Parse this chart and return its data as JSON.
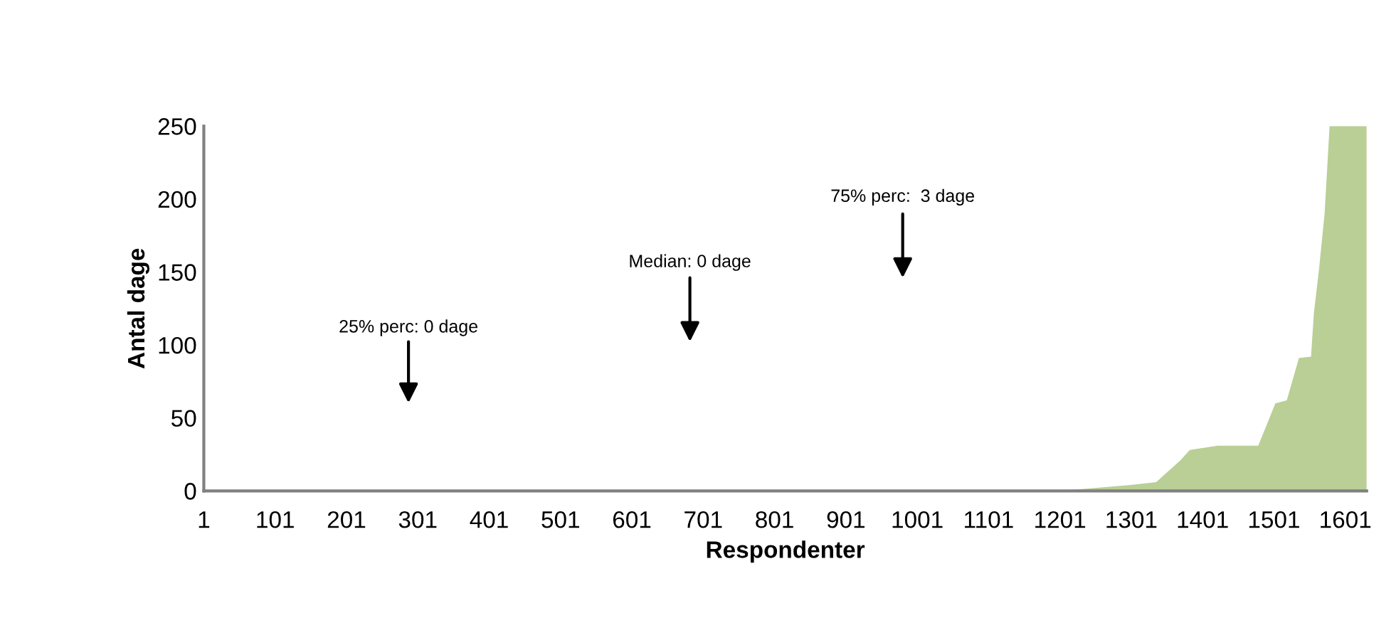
{
  "chart_data": {
    "type": "area",
    "xlabel": "Respondenter",
    "ylabel": "Antal dage",
    "xlim": [
      1,
      1631
    ],
    "xticks": [
      1,
      101,
      201,
      301,
      401,
      501,
      601,
      701,
      801,
      901,
      1001,
      1101,
      1201,
      1301,
      1401,
      1501,
      1601
    ],
    "ylim": [
      0,
      250
    ],
    "yticks": [
      0,
      50,
      100,
      150,
      200,
      250
    ],
    "grid": false,
    "legend": false,
    "series": [
      {
        "color": "#b9cf96",
        "x": [
          1,
          1200,
          1250,
          1300,
          1336,
          1345,
          1370,
          1383,
          1422,
          1479,
          1503,
          1519,
          1536,
          1553,
          1557,
          1564,
          1572,
          1579,
          1631
        ],
        "values": [
          0,
          0,
          2,
          4,
          6,
          10,
          21,
          28,
          31,
          31,
          60,
          62,
          91,
          92,
          122,
          151,
          190,
          250,
          250
        ]
      }
    ],
    "annotations": [
      "25% perc: 0 dage",
      "Median: 0 dage",
      "75% perc:  3 dage"
    ]
  }
}
